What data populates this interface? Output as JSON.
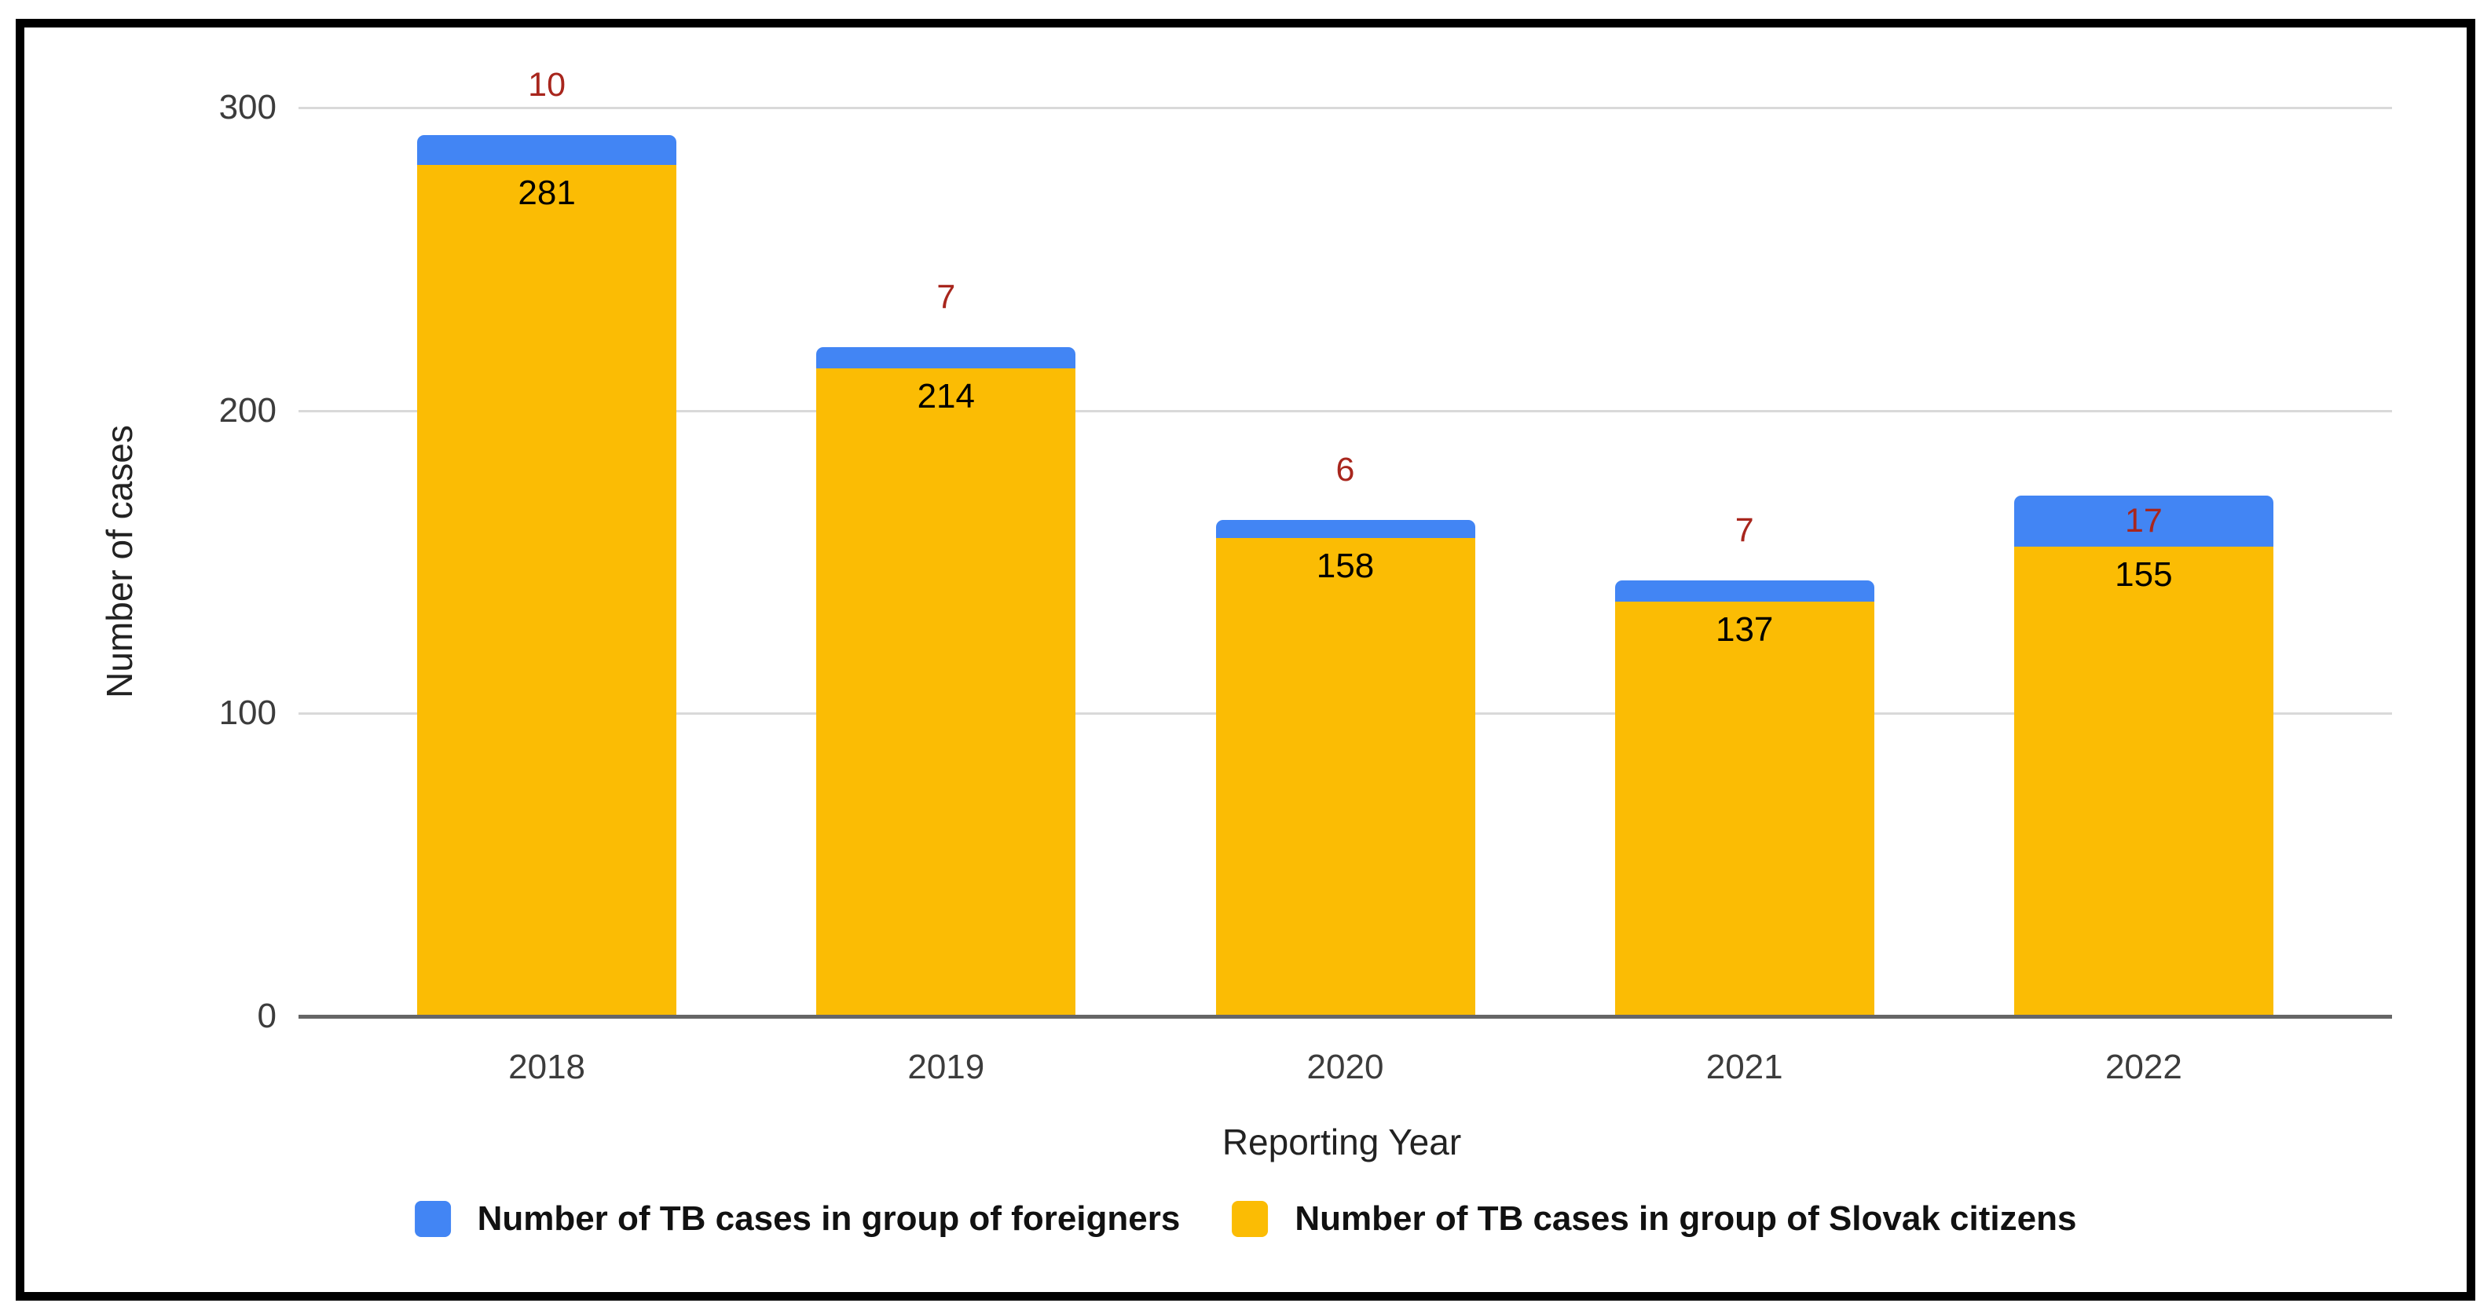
{
  "chart_data": {
    "type": "bar",
    "stacked": true,
    "title": "",
    "xlabel": "Reporting Year",
    "ylabel": "Number of cases",
    "categories": [
      "2018",
      "2019",
      "2020",
      "2021",
      "2022"
    ],
    "series": [
      {
        "name": "Number of TB cases in group of Slovak citizens",
        "color": "#fbbc04",
        "position": "bottom",
        "values": [
          281,
          214,
          158,
          137,
          155
        ],
        "value_labels_inside": true
      },
      {
        "name": "Number of TB cases in group of foreigners",
        "color": "#4285f4",
        "position": "top",
        "values": [
          10,
          7,
          6,
          7,
          17
        ],
        "annotated": true
      }
    ],
    "totals": [
      291,
      221,
      164,
      144,
      172
    ],
    "ylim": [
      0,
      300
    ],
    "yticks": [
      0,
      100,
      200,
      300
    ],
    "grid": true,
    "legend_position": "bottom"
  },
  "legend": {
    "items": [
      {
        "label": "Number of TB cases in group of foreigners",
        "color": "#4285f4"
      },
      {
        "label": "Number of TB cases in group of Slovak citizens",
        "color": "#fbbc04"
      }
    ]
  },
  "colors": {
    "bar_blue": "#4285f4",
    "bar_yellow": "#fbbc04",
    "annotation_red": "#a8261d",
    "value_label_black": "#000000",
    "gridline": "#d9d9d9",
    "baseline": "#666666",
    "axis_text": "#3c3c3c",
    "frame_border": "#000000",
    "background": "#ffffff"
  }
}
